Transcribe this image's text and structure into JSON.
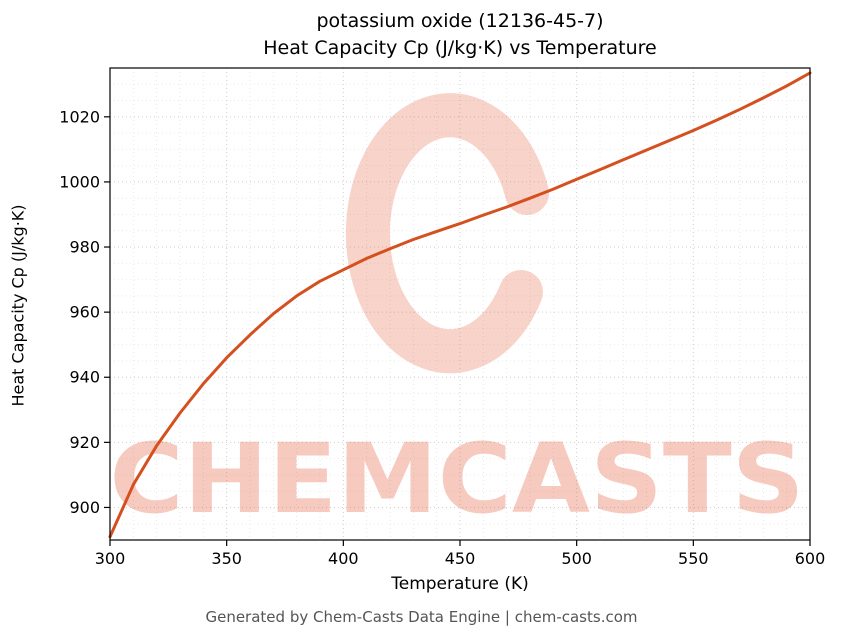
{
  "page": {
    "background": "#ffffff"
  },
  "chart_data": {
    "type": "line",
    "title_line1": "potassium oxide (12136-45-7)",
    "title_line2": "Heat Capacity Cp (J/kg·K) vs Temperature",
    "xlabel": "Temperature (K)",
    "ylabel": "Heat Capacity Cp (J/kg·K)",
    "series_name": "Heat Capacity Cp",
    "xlim": [
      300,
      600
    ],
    "ylim": [
      890,
      1035
    ],
    "x_ticks": [
      300,
      350,
      400,
      450,
      500,
      550,
      600
    ],
    "y_ticks": [
      900,
      920,
      940,
      960,
      980,
      1000,
      1020
    ],
    "x_minor_step": 10,
    "y_minor_step": 5,
    "grid": "dotted",
    "legend": "none",
    "line_color": "#d4501e",
    "line_width": 3,
    "x": [
      300,
      310,
      320,
      330,
      340,
      350,
      360,
      370,
      380,
      390,
      400,
      410,
      420,
      430,
      440,
      450,
      460,
      470,
      480,
      490,
      500,
      510,
      520,
      530,
      540,
      550,
      560,
      570,
      580,
      590,
      600
    ],
    "y": [
      891,
      907,
      919,
      929,
      938,
      946,
      953,
      959.5,
      965,
      969.5,
      973,
      976.5,
      979.5,
      982.3,
      984.8,
      987.2,
      989.8,
      992.3,
      995,
      997.8,
      1000.8,
      1003.8,
      1006.8,
      1009.8,
      1012.8,
      1015.8,
      1019,
      1022.3,
      1025.8,
      1029.5,
      1033.5
    ]
  },
  "watermark": {
    "text": "CHEMCASTS",
    "color": "#e3502c",
    "text_opacity": 0.3,
    "ring_opacity": 0.25
  },
  "footer": {
    "text": "Generated by Chem-Casts Data Engine | chem-casts.com",
    "color": "#555555"
  }
}
